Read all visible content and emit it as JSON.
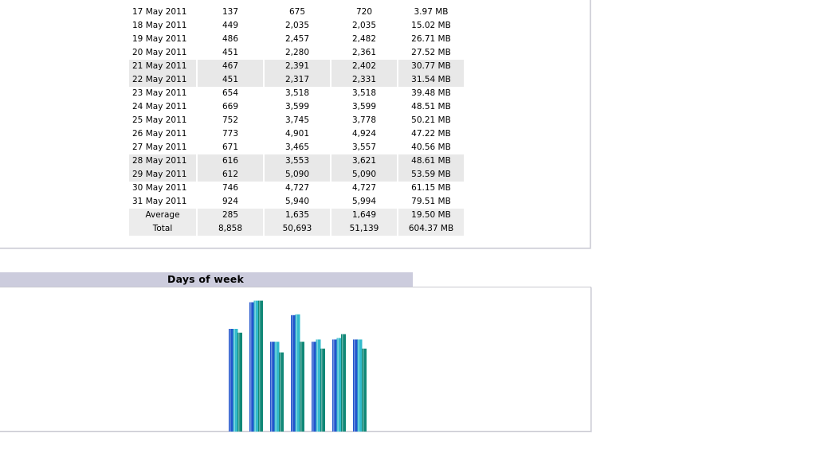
{
  "daily_table": {
    "rows": [
      {
        "date": "17 May 2011",
        "v1": "137",
        "v2": "675",
        "v3": "720",
        "size": "3.97 MB",
        "shaded": false
      },
      {
        "date": "18 May 2011",
        "v1": "449",
        "v2": "2,035",
        "v3": "2,035",
        "size": "15.02 MB",
        "shaded": false
      },
      {
        "date": "19 May 2011",
        "v1": "486",
        "v2": "2,457",
        "v3": "2,482",
        "size": "26.71 MB",
        "shaded": false
      },
      {
        "date": "20 May 2011",
        "v1": "451",
        "v2": "2,280",
        "v3": "2,361",
        "size": "27.52 MB",
        "shaded": false
      },
      {
        "date": "21 May 2011",
        "v1": "467",
        "v2": "2,391",
        "v3": "2,402",
        "size": "30.77 MB",
        "shaded": true
      },
      {
        "date": "22 May 2011",
        "v1": "451",
        "v2": "2,317",
        "v3": "2,331",
        "size": "31.54 MB",
        "shaded": true
      },
      {
        "date": "23 May 2011",
        "v1": "654",
        "v2": "3,518",
        "v3": "3,518",
        "size": "39.48 MB",
        "shaded": false
      },
      {
        "date": "24 May 2011",
        "v1": "669",
        "v2": "3,599",
        "v3": "3,599",
        "size": "48.51 MB",
        "shaded": false
      },
      {
        "date": "25 May 2011",
        "v1": "752",
        "v2": "3,745",
        "v3": "3,778",
        "size": "50.21 MB",
        "shaded": false
      },
      {
        "date": "26 May 2011",
        "v1": "773",
        "v2": "4,901",
        "v3": "4,924",
        "size": "47.22 MB",
        "shaded": false
      },
      {
        "date": "27 May 2011",
        "v1": "671",
        "v2": "3,465",
        "v3": "3,557",
        "size": "40.56 MB",
        "shaded": false
      },
      {
        "date": "28 May 2011",
        "v1": "616",
        "v2": "3,553",
        "v3": "3,621",
        "size": "48.61 MB",
        "shaded": true
      },
      {
        "date": "29 May 2011",
        "v1": "612",
        "v2": "5,090",
        "v3": "5,090",
        "size": "53.59 MB",
        "shaded": true
      },
      {
        "date": "30 May 2011",
        "v1": "746",
        "v2": "4,727",
        "v3": "4,727",
        "size": "61.15 MB",
        "shaded": false
      },
      {
        "date": "31 May 2011",
        "v1": "924",
        "v2": "5,940",
        "v3": "5,994",
        "size": "79.51 MB",
        "shaded": false
      }
    ],
    "average": {
      "label": "Average",
      "v1": "285",
      "v2": "1,635",
      "v3": "1,649",
      "size": "19.50 MB"
    },
    "total": {
      "label": "Total",
      "v1": "8,858",
      "v2": "50,693",
      "v3": "51,139",
      "size": "604.37 MB"
    }
  },
  "days_of_week": {
    "title": "Days of week"
  },
  "chart_data": {
    "type": "bar",
    "title": "Days of week",
    "categories": [
      "",
      "",
      "",
      "",
      "",
      "",
      ""
    ],
    "series": [
      {
        "color": "#2255cc",
        "values": [
          135,
          170,
          118,
          153,
          118,
          121,
          121
        ]
      },
      {
        "color": "#33bbcc",
        "values": [
          135,
          172,
          118,
          154,
          121,
          123,
          121
        ]
      },
      {
        "color": "#118877",
        "values": [
          130,
          172,
          104,
          118,
          109,
          128,
          109
        ]
      }
    ],
    "ylim": [
      0,
      180
    ],
    "grid": false,
    "colors": {
      "pages": "#2255cc",
      "hits": "#33bbcc",
      "bandwidth": "#118877"
    }
  },
  "colors": {
    "section_bar": "#ccccdd",
    "row_shade": "#e8e8e8",
    "panel_border": "#c8c8d0"
  }
}
